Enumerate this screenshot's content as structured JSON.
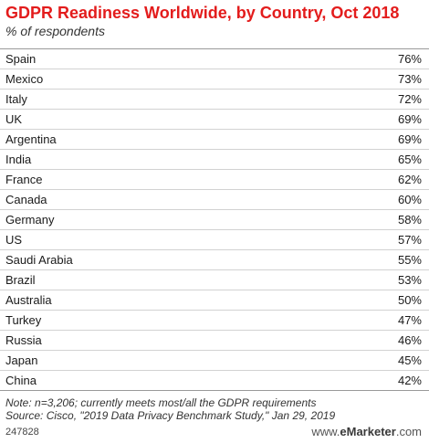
{
  "header": {
    "title": "GDPR Readiness Worldwide, by Country, Oct 2018",
    "subtitle": "% of respondents"
  },
  "chart_data": {
    "type": "table",
    "title": "GDPR Readiness Worldwide, by Country, Oct 2018",
    "subtitle": "% of respondents",
    "categories": [
      "Spain",
      "Mexico",
      "Italy",
      "UK",
      "Argentina",
      "India",
      "France",
      "Canada",
      "Germany",
      "US",
      "Saudi Arabia",
      "Brazil",
      "Australia",
      "Turkey",
      "Russia",
      "Japan",
      "China"
    ],
    "values": [
      76,
      73,
      72,
      69,
      69,
      65,
      62,
      60,
      58,
      57,
      55,
      53,
      50,
      47,
      46,
      45,
      42
    ],
    "labels": [
      "76%",
      "73%",
      "72%",
      "69%",
      "69%",
      "65%",
      "62%",
      "60%",
      "58%",
      "57%",
      "55%",
      "53%",
      "50%",
      "47%",
      "46%",
      "45%",
      "42%"
    ]
  },
  "footer": {
    "note": "Note: n=3,206; currently meets most/all the GDPR requirements",
    "source": "Source: Cisco, \"2019 Data Privacy Benchmark Study,\" Jan 29, 2019"
  },
  "bottom": {
    "chart_id": "247828",
    "brand_prefix": "www.",
    "brand_name": "eMarketer",
    "brand_suffix": ".com"
  },
  "colors": {
    "title": "#e31c1c",
    "text": "#1a1a1a",
    "rule": "#d2d2d2"
  }
}
